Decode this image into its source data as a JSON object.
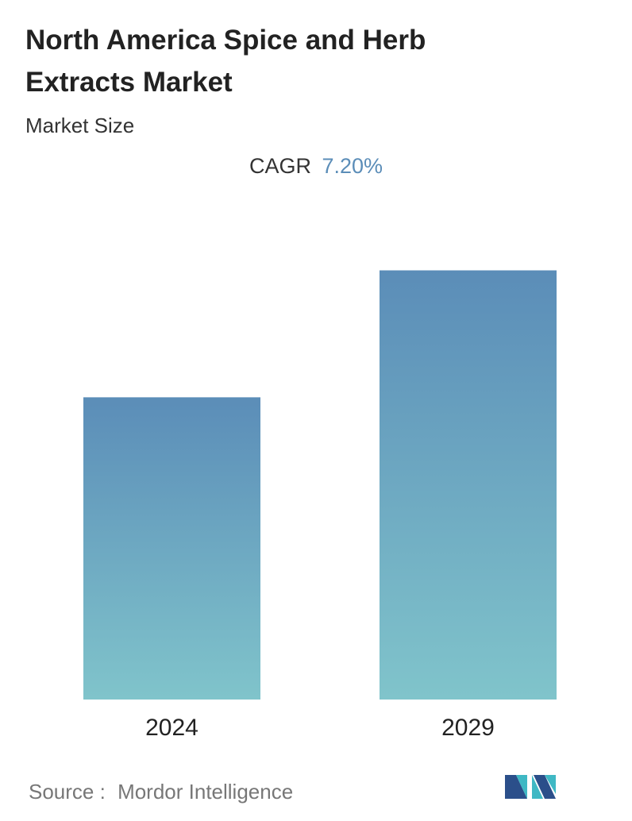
{
  "chart_data": {
    "type": "bar",
    "title": "North America Spice and Herb Extracts Market",
    "subtitle": "Market Size",
    "cagr_label": "CAGR",
    "cagr_value": "7.20%",
    "categories": [
      "2024",
      "2029"
    ],
    "values": [
      1.0,
      1.42
    ],
    "ylim": [
      0,
      1.6
    ],
    "color_top": "#5b8db8",
    "color_bottom": "#80c4cb",
    "source_label": "Source :",
    "source": "Mordor Intelligence"
  }
}
